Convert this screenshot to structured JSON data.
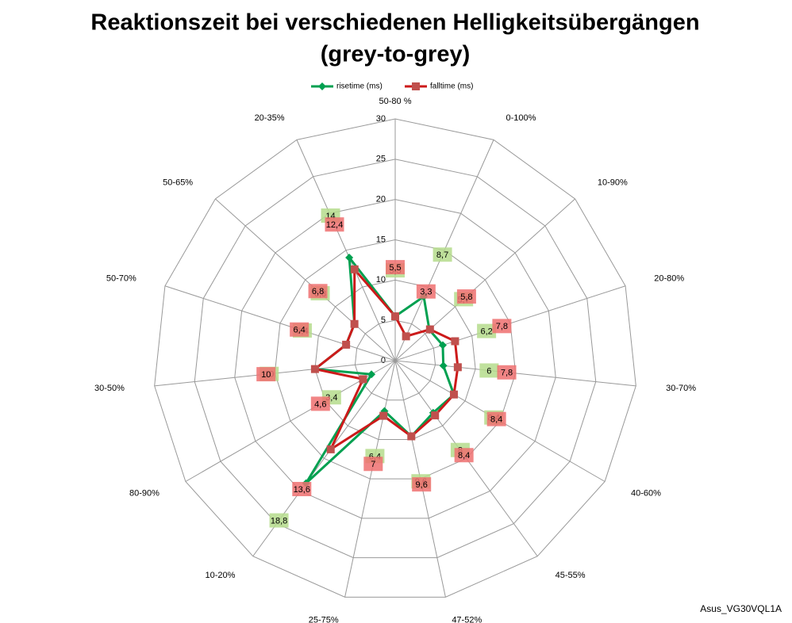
{
  "chart_data": {
    "type": "radar",
    "title": "Reaktionszeit bei verschiedenen Helligkeitsübergängen",
    "subtitle": "(grey-to-grey)",
    "footer": "Asus_VG30VQL1A",
    "categories": [
      "50-80 %",
      "0-100%",
      "10-90%",
      "20-80%",
      "30-70%",
      "40-60%",
      "45-55%",
      "47-52%",
      "25-75%",
      "10-20%",
      "80-90%",
      "30-50%",
      "50-70%",
      "50-65%",
      "20-35%"
    ],
    "series": [
      {
        "name": "risetime (ms)",
        "color": "#00a050",
        "label_color": "#b5dc8c",
        "values": [
          5.5,
          8.7,
          5.7,
          6.2,
          6,
          8.4,
          8,
          9.6,
          6.4,
          18.8,
          3.4,
          10,
          6.4,
          6.8,
          14
        ],
        "value_labels": [
          "5,5",
          "8,7",
          "5,7",
          "6,2",
          "6",
          "8,4",
          "8",
          "9,6",
          "6,4",
          "18,8",
          "3,4",
          "10",
          "6,4",
          "6,8",
          "14"
        ]
      },
      {
        "name": "falltime (ms)",
        "color": "#cc1a1a",
        "label_color": "#ee7070",
        "values": [
          5.5,
          3.3,
          5.8,
          7.8,
          7.8,
          8.4,
          8.4,
          9.6,
          7,
          13.6,
          4.6,
          10,
          6.4,
          6.8,
          12.4
        ],
        "value_labels": [
          "5,5",
          "3,3",
          "5,8",
          "7,8",
          "7,8",
          "8,4",
          "8,4",
          "9,6",
          "7",
          "13,6",
          "4,6",
          "10",
          "6,4",
          "6,8",
          "12,4"
        ]
      }
    ],
    "ylim": [
      0,
      30
    ],
    "yticks": [
      0,
      5,
      10,
      15,
      20,
      25,
      30
    ],
    "grid": true,
    "legend": "top"
  }
}
